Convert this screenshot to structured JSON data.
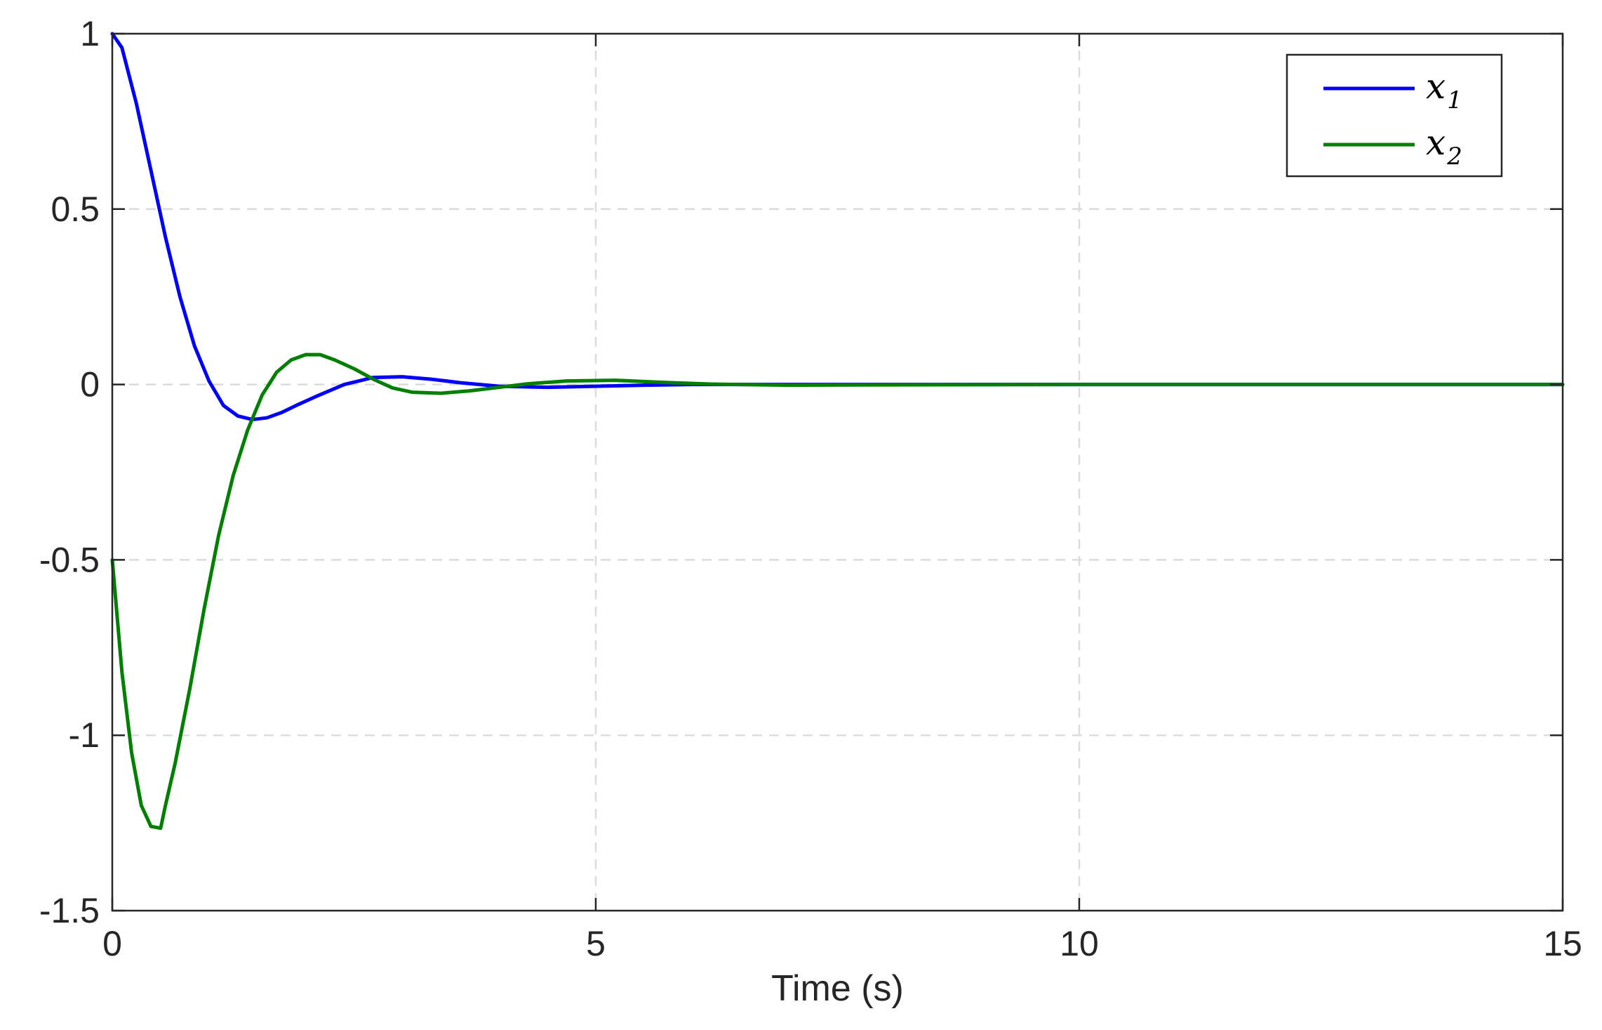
{
  "chart_data": {
    "type": "line",
    "title": "",
    "xlabel": "Time (s)",
    "ylabel": "",
    "xlim": [
      0,
      15
    ],
    "ylim": [
      -1.5,
      1
    ],
    "xticks": [
      0,
      5,
      10,
      15
    ],
    "xtick_labels": [
      "0",
      "5",
      "10",
      "15"
    ],
    "yticks": [
      -1.5,
      -1,
      -0.5,
      0,
      0.5,
      1
    ],
    "ytick_labels": [
      "-1.5",
      "-1",
      "-0.5",
      "0",
      "0.5",
      "1"
    ],
    "grid": true,
    "grid_style": "dashed",
    "legend_position": "top-right",
    "series": [
      {
        "name": "x",
        "name_subscript": "1",
        "color": "#0000ff",
        "x": [
          0,
          0.1,
          0.25,
          0.4,
          0.55,
          0.7,
          0.85,
          1.0,
          1.15,
          1.3,
          1.45,
          1.6,
          1.75,
          1.9,
          2.1,
          2.4,
          2.7,
          3.0,
          3.3,
          3.6,
          4.0,
          4.5,
          5.0,
          5.5,
          6.0,
          7.0,
          8.0,
          10.0,
          12.0,
          15.0
        ],
        "y": [
          1.0,
          0.96,
          0.8,
          0.61,
          0.42,
          0.25,
          0.11,
          0.01,
          -0.06,
          -0.09,
          -0.1,
          -0.095,
          -0.08,
          -0.06,
          -0.035,
          0.0,
          0.02,
          0.022,
          0.015,
          0.005,
          -0.005,
          -0.008,
          -0.005,
          -0.002,
          0.0,
          0.0,
          0.0,
          0.0,
          0.0,
          0.0
        ]
      },
      {
        "name": "x",
        "name_subscript": "2",
        "color": "#007f00",
        "x": [
          0,
          0.1,
          0.2,
          0.3,
          0.4,
          0.5,
          0.55,
          0.65,
          0.8,
          0.95,
          1.1,
          1.25,
          1.4,
          1.55,
          1.7,
          1.85,
          2.0,
          2.15,
          2.3,
          2.5,
          2.7,
          2.9,
          3.1,
          3.4,
          3.7,
          4.0,
          4.3,
          4.7,
          5.2,
          5.7,
          6.2,
          7.0,
          8.0,
          10.0,
          12.0,
          15.0
        ],
        "y": [
          -0.5,
          -0.82,
          -1.05,
          -1.2,
          -1.26,
          -1.265,
          -1.2,
          -1.08,
          -0.87,
          -0.64,
          -0.43,
          -0.26,
          -0.13,
          -0.03,
          0.035,
          0.07,
          0.085,
          0.085,
          0.07,
          0.045,
          0.015,
          -0.01,
          -0.022,
          -0.025,
          -0.018,
          -0.008,
          0.002,
          0.01,
          0.012,
          0.006,
          0.001,
          -0.002,
          -0.001,
          0.0,
          0.0,
          0.0
        ]
      }
    ]
  },
  "colors": {
    "axes": "#262626",
    "grid": "#dcdcdc",
    "background": "#ffffff"
  }
}
